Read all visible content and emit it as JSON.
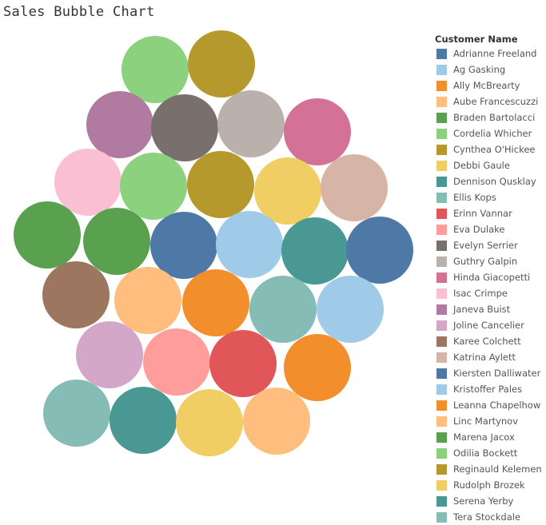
{
  "chart_data": {
    "type": "bubble",
    "title": "Sales Bubble Chart",
    "legend_title": "Customer Name",
    "legend_position": "right",
    "legend": [
      {
        "name": "Adrianne Freeland",
        "color": "#4e79a7"
      },
      {
        "name": "Ag Gasking",
        "color": "#a0cbe8"
      },
      {
        "name": "Ally McBrearty",
        "color": "#f28e2b"
      },
      {
        "name": "Aube Francescuzzi",
        "color": "#ffbe7d"
      },
      {
        "name": "Braden Bartolacci",
        "color": "#59a14f"
      },
      {
        "name": "Cordelia Whicher",
        "color": "#8cd17d"
      },
      {
        "name": "Cynthea O'Hickee",
        "color": "#b6992d"
      },
      {
        "name": "Debbi Gaule",
        "color": "#f1ce63"
      },
      {
        "name": "Dennison Qusklay",
        "color": "#499894"
      },
      {
        "name": "Ellis Kops",
        "color": "#86bcb6"
      },
      {
        "name": "Erinn Vannar",
        "color": "#e15759"
      },
      {
        "name": "Eva Dulake",
        "color": "#ff9d9a"
      },
      {
        "name": "Evelyn Serrier",
        "color": "#79706e"
      },
      {
        "name": "Guthry Galpin",
        "color": "#bab0ac"
      },
      {
        "name": "Hinda Giacopetti",
        "color": "#d37295"
      },
      {
        "name": "Isac Crimpe",
        "color": "#fabfd2"
      },
      {
        "name": "Janeva Buist",
        "color": "#b07aa1"
      },
      {
        "name": "Joline Cancelier",
        "color": "#d4a6c8"
      },
      {
        "name": "Karee Colchett",
        "color": "#9d7660"
      },
      {
        "name": "Katrina Aylett",
        "color": "#d7b5a6"
      },
      {
        "name": "Kiersten Dalliwater",
        "color": "#4e79a7"
      },
      {
        "name": "Kristoffer Pales",
        "color": "#a0cbe8"
      },
      {
        "name": "Leanna Chapelhow",
        "color": "#f28e2b"
      },
      {
        "name": "Linc Martynov",
        "color": "#ffbe7d"
      },
      {
        "name": "Marena Jacox",
        "color": "#59a14f"
      },
      {
        "name": "Odilia Bockett",
        "color": "#8cd17d"
      },
      {
        "name": "Reginauld Kelemen",
        "color": "#b6992d"
      },
      {
        "name": "Rudolph Brozek",
        "color": "#f1ce63"
      },
      {
        "name": "Serena Yerby",
        "color": "#499894"
      },
      {
        "name": "Tera Stockdale",
        "color": "#86bcb6"
      }
    ],
    "bubbles": [
      {
        "color": "#8cd17d",
        "size": 1.0
      },
      {
        "color": "#b6992d",
        "size": 1.0
      },
      {
        "color": "#b07aa1",
        "size": 1.0
      },
      {
        "color": "#79706e",
        "size": 1.0
      },
      {
        "color": "#bab0ac",
        "size": 1.0
      },
      {
        "color": "#d37295",
        "size": 1.0
      },
      {
        "color": "#fabfd2",
        "size": 1.0
      },
      {
        "color": "#8cd17d",
        "size": 1.0
      },
      {
        "color": "#b6992d",
        "size": 1.0
      },
      {
        "color": "#f1ce63",
        "size": 1.0
      },
      {
        "color": "#d7b5a6",
        "size": 1.0
      },
      {
        "color": "#59a14f",
        "size": 1.0
      },
      {
        "color": "#59a14f",
        "size": 1.0
      },
      {
        "color": "#4e79a7",
        "size": 1.0
      },
      {
        "color": "#a0cbe8",
        "size": 1.0
      },
      {
        "color": "#499894",
        "size": 1.0
      },
      {
        "color": "#4e79a7",
        "size": 1.0
      },
      {
        "color": "#9d7660",
        "size": 1.0
      },
      {
        "color": "#ffbe7d",
        "size": 1.0
      },
      {
        "color": "#f28e2b",
        "size": 1.0
      },
      {
        "color": "#86bcb6",
        "size": 1.0
      },
      {
        "color": "#a0cbe8",
        "size": 1.0
      },
      {
        "color": "#d4a6c8",
        "size": 1.0
      },
      {
        "color": "#ff9d9a",
        "size": 1.0
      },
      {
        "color": "#e15759",
        "size": 1.0
      },
      {
        "color": "#f28e2b",
        "size": 1.0
      },
      {
        "color": "#86bcb6",
        "size": 1.0
      },
      {
        "color": "#499894",
        "size": 1.0
      },
      {
        "color": "#f1ce63",
        "size": 1.0
      },
      {
        "color": "#ffbe7d",
        "size": 1.0
      }
    ]
  }
}
